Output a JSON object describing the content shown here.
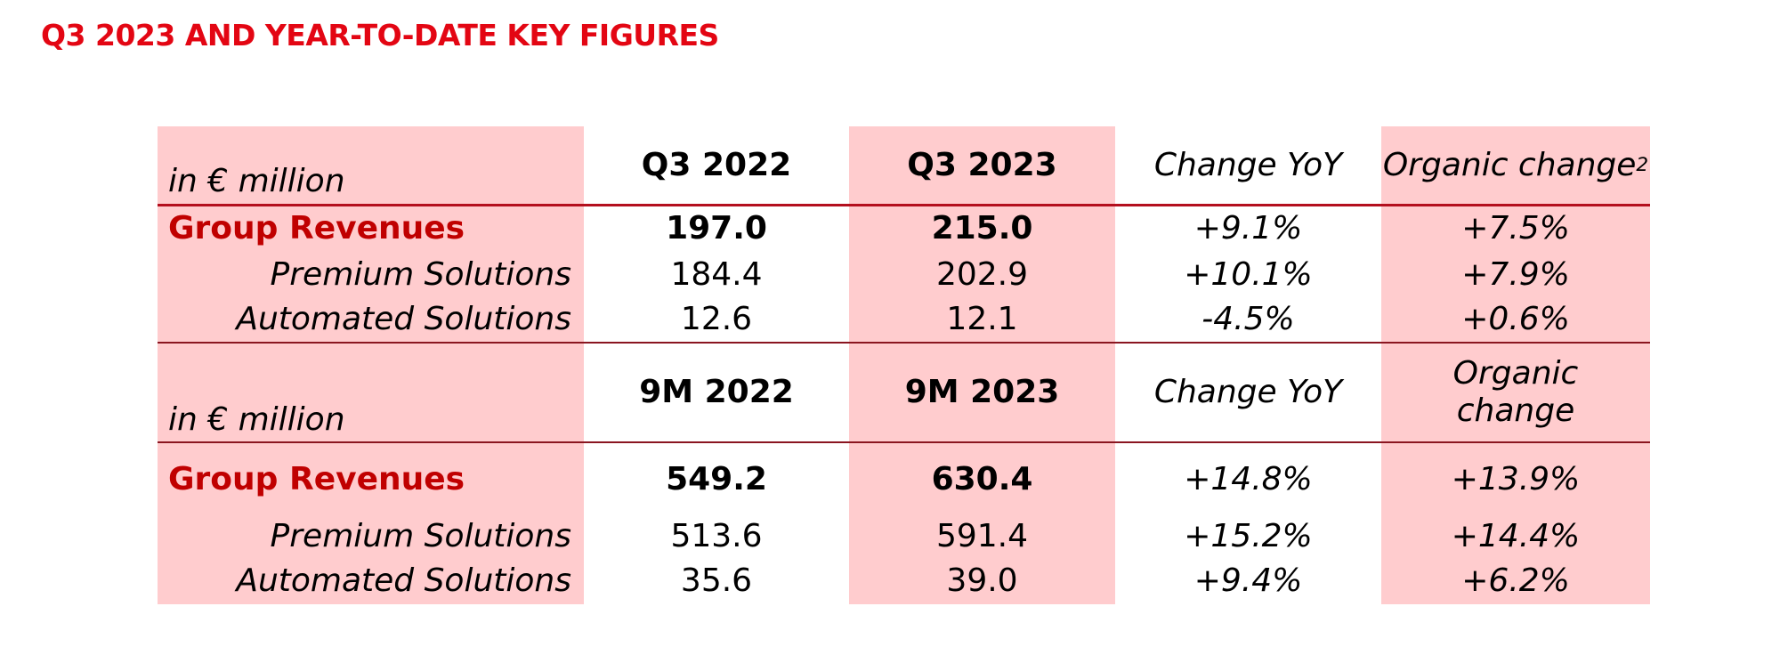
{
  "page_title": "Q3 2023 AND YEAR-TO-DATE KEY FIGURES",
  "q3": {
    "unit_label": "in € million",
    "headers": [
      "Q3 2022",
      "Q3 2023",
      "Change YoY",
      "Organic change"
    ],
    "organic_footnote": "2",
    "rows": [
      {
        "label": "Group Revenues",
        "values": [
          "197.0",
          "215.0",
          "+9.1%",
          "+7.5%"
        ]
      },
      {
        "label": "Premium Solutions",
        "values": [
          "184.4",
          "202.9",
          "+10.1%",
          "+7.9%"
        ]
      },
      {
        "label": "Automated Solutions",
        "values": [
          "12.6",
          "12.1",
          "-4.5%",
          "+0.6%"
        ]
      }
    ]
  },
  "nine_months": {
    "unit_label": "in € million",
    "headers": [
      "9M 2022",
      "9M 2023",
      "Change YoY",
      "Organic",
      "change"
    ],
    "rows": [
      {
        "label": "Group Revenues",
        "values": [
          "549.2",
          "630.4",
          "+14.8%",
          "+13.9%"
        ]
      },
      {
        "label": "Premium Solutions",
        "values": [
          "513.6",
          "591.4",
          "+15.2%",
          "+14.4%"
        ]
      },
      {
        "label": "Automated Solutions",
        "values": [
          "35.6",
          "39.0",
          "+9.4%",
          "+6.2%"
        ]
      }
    ]
  },
  "colors": {
    "title_red": "#e30613",
    "label_red": "#c00000",
    "shade_pink": "#ffccce",
    "rule_red": "#b40f1e"
  }
}
